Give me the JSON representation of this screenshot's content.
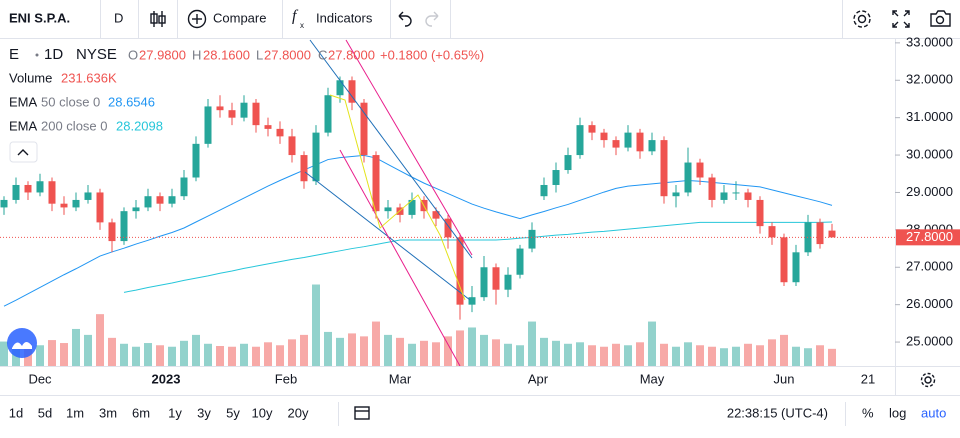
{
  "toolbar": {
    "symbol": "ENI S.P.A.",
    "interval": "D",
    "compare": "Compare",
    "indicators": "Indicators"
  },
  "legend": {
    "symbol": "E",
    "interval": "1D",
    "exchange": "NYSE",
    "o": "O",
    "o_value": "27.9800",
    "h": "H",
    "h_value": "28.1600",
    "l": "L",
    "l_value": "27.8000",
    "c": "C",
    "c_value": "27.8000",
    "change": "+0.1800 (+0.65%)",
    "volume": "Volume",
    "volume_value": "231.636K",
    "ema": "EMA",
    "ema50_params": "50 close 0",
    "ema50_value": "28.6546",
    "ema200_params": "200 close 0",
    "ema200_value": "28.2098"
  },
  "bottombar": {
    "ranges": [
      "1d",
      "5d",
      "1m",
      "3m",
      "6m",
      "1y",
      "3y",
      "5y",
      "10y",
      "20y"
    ],
    "clock": "22:38:15 (UTC-4)",
    "percent": "%",
    "log": "log",
    "auto": "auto"
  },
  "chart_data": {
    "type": "candlestick",
    "ylim": [
      24.36,
      33.13
    ],
    "yticks": [
      {
        "value": 25,
        "label": "25.0000"
      },
      {
        "value": 26,
        "label": "26.0000"
      },
      {
        "value": 27,
        "label": "27.0000"
      },
      {
        "value": 28,
        "label": "28.0000"
      },
      {
        "value": 29,
        "label": "29.0000"
      },
      {
        "value": 30,
        "label": "30.0000"
      },
      {
        "value": 31,
        "label": "31.0000"
      },
      {
        "value": 32,
        "label": "32.0000"
      },
      {
        "value": 33,
        "label": "33.0000"
      }
    ],
    "xticks": [
      {
        "value": 3,
        "label": "Dec"
      },
      {
        "value": 13.5,
        "label": "2023"
      },
      {
        "value": 23.5,
        "label": "Feb"
      },
      {
        "value": 33,
        "label": "Mar"
      },
      {
        "value": 44.5,
        "label": "Apr"
      },
      {
        "value": 54,
        "label": "May"
      },
      {
        "value": 65,
        "label": "Jun"
      },
      {
        "value": 72,
        "label": "21"
      }
    ],
    "up_color": "#26a69a",
    "down_color": "#ef5350",
    "candles": [
      [
        28.6,
        28.9,
        28.4,
        28.8
      ],
      [
        28.8,
        29.4,
        28.7,
        29.2
      ],
      [
        29.2,
        29.3,
        28.8,
        29.0
      ],
      [
        29.0,
        29.5,
        28.9,
        29.3
      ],
      [
        29.3,
        29.4,
        28.5,
        28.7
      ],
      [
        28.7,
        28.9,
        28.4,
        28.6
      ],
      [
        28.6,
        29.0,
        28.5,
        28.8
      ],
      [
        28.8,
        29.2,
        28.7,
        29.0
      ],
      [
        29.0,
        29.1,
        28.0,
        28.2
      ],
      [
        28.2,
        28.3,
        27.4,
        27.7
      ],
      [
        27.7,
        28.6,
        27.6,
        28.5
      ],
      [
        28.5,
        28.8,
        28.3,
        28.6
      ],
      [
        28.6,
        29.1,
        28.5,
        28.9
      ],
      [
        28.9,
        29.0,
        28.5,
        28.7
      ],
      [
        28.7,
        29.1,
        28.6,
        28.9
      ],
      [
        28.9,
        29.6,
        28.8,
        29.4
      ],
      [
        29.4,
        30.5,
        29.3,
        30.3
      ],
      [
        30.3,
        31.5,
        30.2,
        31.3
      ],
      [
        31.3,
        31.6,
        31.0,
        31.2
      ],
      [
        31.2,
        31.4,
        30.8,
        31.0
      ],
      [
        31.0,
        31.6,
        30.9,
        31.4
      ],
      [
        31.4,
        31.5,
        30.6,
        30.8
      ],
      [
        30.8,
        31.0,
        30.5,
        30.7
      ],
      [
        30.7,
        30.9,
        30.3,
        30.5
      ],
      [
        30.5,
        30.7,
        29.8,
        30.0
      ],
      [
        30.0,
        30.1,
        29.1,
        29.3
      ],
      [
        29.3,
        30.8,
        29.2,
        30.6
      ],
      [
        30.6,
        31.8,
        30.5,
        31.6
      ],
      [
        31.6,
        32.1,
        31.4,
        32.0
      ],
      [
        32.0,
        32.1,
        31.2,
        31.4
      ],
      [
        31.4,
        31.5,
        29.8,
        30.0
      ],
      [
        30.0,
        30.1,
        28.3,
        28.5
      ],
      [
        28.5,
        28.8,
        28.3,
        28.6
      ],
      [
        28.6,
        28.7,
        28.2,
        28.4
      ],
      [
        28.4,
        29.0,
        28.3,
        28.8
      ],
      [
        28.8,
        28.9,
        28.3,
        28.5
      ],
      [
        28.5,
        28.6,
        28.1,
        28.3
      ],
      [
        28.3,
        28.4,
        27.5,
        27.8
      ],
      [
        27.8,
        27.9,
        25.6,
        26.0
      ],
      [
        26.0,
        26.5,
        25.8,
        26.2
      ],
      [
        26.2,
        27.3,
        26.1,
        27.0
      ],
      [
        27.0,
        27.1,
        26.0,
        26.4
      ],
      [
        26.4,
        27.0,
        26.2,
        26.8
      ],
      [
        26.8,
        27.6,
        26.7,
        27.5
      ],
      [
        27.5,
        28.2,
        27.4,
        28.0
      ],
      [
        28.9,
        29.4,
        28.8,
        29.2
      ],
      [
        29.2,
        29.8,
        29.0,
        29.6
      ],
      [
        29.6,
        30.2,
        29.5,
        30.0
      ],
      [
        30.0,
        31.0,
        29.9,
        30.8
      ],
      [
        30.8,
        30.9,
        30.4,
        30.6
      ],
      [
        30.6,
        30.7,
        30.2,
        30.4
      ],
      [
        30.4,
        30.5,
        30.0,
        30.2
      ],
      [
        30.2,
        30.8,
        30.1,
        30.6
      ],
      [
        30.6,
        30.7,
        29.9,
        30.1
      ],
      [
        30.1,
        30.6,
        30.0,
        30.4
      ],
      [
        30.4,
        30.5,
        28.7,
        28.9
      ],
      [
        28.9,
        29.2,
        28.6,
        29.0
      ],
      [
        29.0,
        30.2,
        28.9,
        29.8
      ],
      [
        29.8,
        29.9,
        29.2,
        29.4
      ],
      [
        29.4,
        29.5,
        28.6,
        28.8
      ],
      [
        28.8,
        29.2,
        28.7,
        29.0
      ],
      [
        29.0,
        29.3,
        28.8,
        29.0
      ],
      [
        29.0,
        29.1,
        28.6,
        28.8
      ],
      [
        28.8,
        28.9,
        27.9,
        28.1
      ],
      [
        28.1,
        28.2,
        27.6,
        27.8
      ],
      [
        27.8,
        27.9,
        26.5,
        26.6
      ],
      [
        26.6,
        27.6,
        26.5,
        27.4
      ],
      [
        27.4,
        28.4,
        27.3,
        28.2
      ],
      [
        28.2,
        28.3,
        27.5,
        27.62
      ],
      [
        27.98,
        28.16,
        27.8,
        27.8
      ]
    ],
    "volume_lim": [
      0,
      1350
    ],
    "volumes": [
      330,
      260,
      300,
      280,
      350,
      310,
      500,
      420,
      700,
      380,
      300,
      260,
      310,
      280,
      260,
      340,
      420,
      300,
      270,
      260,
      300,
      260,
      320,
      280,
      360,
      420,
      1100,
      460,
      380,
      440,
      400,
      600,
      420,
      380,
      300,
      340,
      320,
      400,
      480,
      520,
      420,
      360,
      300,
      280,
      600,
      380,
      340,
      300,
      320,
      280,
      260,
      300,
      280,
      320,
      600,
      300,
      260,
      320,
      280,
      260,
      240,
      260,
      300,
      280,
      360,
      420,
      260,
      240,
      280,
      231.636
    ],
    "series": [
      {
        "name": "EMA 50",
        "color": "#2196f3",
        "values": [
          25.96,
          26.12,
          26.29,
          26.46,
          26.63,
          26.8,
          26.96,
          27.13,
          27.3,
          27.41,
          27.51,
          27.62,
          27.72,
          27.83,
          27.93,
          28.05,
          28.21,
          28.37,
          28.53,
          28.69,
          28.85,
          29.01,
          29.17,
          29.32,
          29.46,
          29.6,
          29.74,
          29.88,
          29.93,
          29.96,
          29.99,
          29.92,
          29.75,
          29.58,
          29.41,
          29.25,
          29.11,
          28.97,
          28.83,
          28.69,
          28.58,
          28.48,
          28.39,
          28.3,
          28.4,
          28.49,
          28.59,
          28.68,
          28.79,
          28.9,
          29.01,
          29.11,
          29.17,
          29.2,
          29.23,
          29.26,
          29.29,
          29.32,
          29.3,
          29.27,
          29.24,
          29.21,
          29.18,
          29.15,
          29.07,
          28.99,
          28.91,
          28.83,
          28.75,
          28.6546
        ]
      },
      {
        "name": "EMA 200",
        "color": "#26c6da",
        "values": [
          null,
          null,
          null,
          null,
          null,
          null,
          null,
          null,
          null,
          null,
          26.33,
          26.39,
          26.46,
          26.52,
          26.58,
          26.65,
          26.71,
          26.77,
          26.84,
          26.9,
          26.97,
          27.03,
          27.09,
          27.15,
          27.21,
          27.26,
          27.32,
          27.38,
          27.44,
          27.5,
          27.55,
          27.61,
          27.67,
          27.73,
          27.73,
          27.73,
          27.73,
          27.73,
          27.73,
          27.73,
          27.73,
          27.73,
          27.75,
          27.78,
          27.8,
          27.83,
          27.86,
          27.88,
          27.91,
          27.94,
          27.96,
          27.99,
          28.02,
          28.05,
          28.08,
          28.11,
          28.14,
          28.17,
          28.2,
          28.2,
          28.2,
          28.2,
          28.2,
          28.2,
          28.2,
          28.2,
          28.2,
          28.2,
          28.2,
          28.2098
        ]
      }
    ],
    "last_price": {
      "value": 27.8,
      "label": "27.8000"
    }
  }
}
